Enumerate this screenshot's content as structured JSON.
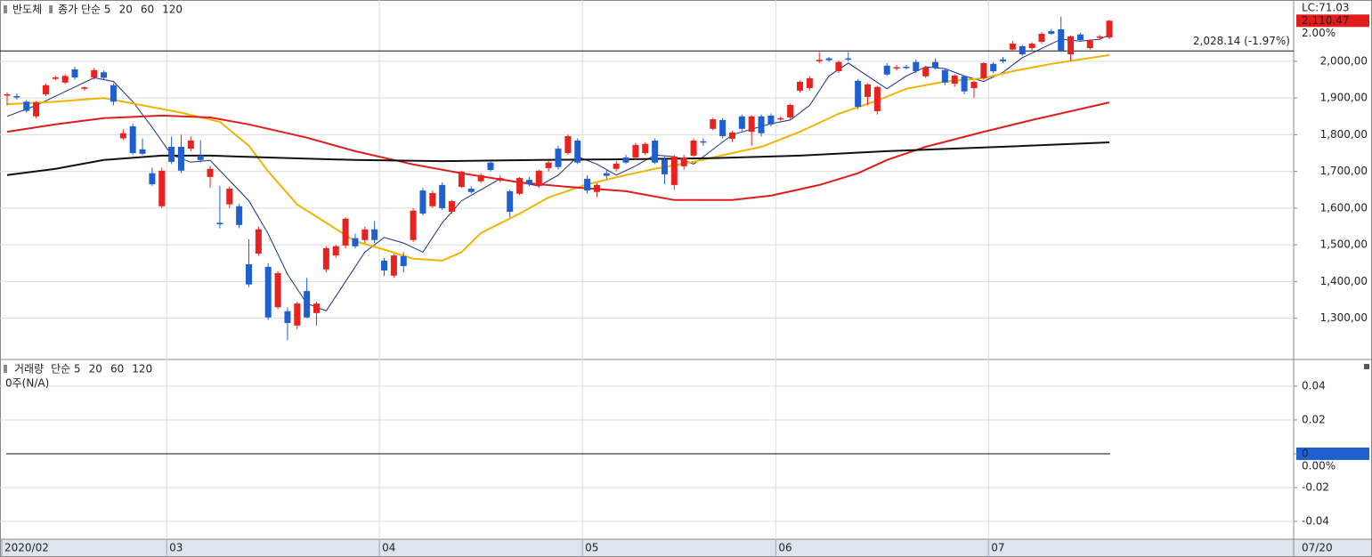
{
  "chart_data": [
    {
      "type": "candlestick",
      "title": "반도체",
      "categories": [
        "2020/02",
        null,
        null,
        null,
        null,
        null,
        null,
        null,
        null,
        null,
        null,
        null,
        null,
        null,
        null,
        null,
        null,
        "03",
        null,
        null,
        null,
        null,
        null,
        null,
        null,
        null,
        null,
        null,
        null,
        null,
        null,
        null,
        null,
        null,
        null,
        null,
        null,
        null,
        null,
        "04",
        null,
        null,
        null,
        null,
        null,
        null,
        null,
        null,
        null,
        null,
        null,
        null,
        null,
        null,
        null,
        null,
        null,
        null,
        null,
        null,
        "05",
        null,
        null,
        null,
        null,
        null,
        null,
        null,
        null,
        null,
        null,
        null,
        null,
        null,
        null,
        null,
        null,
        null,
        null,
        null,
        "06",
        null,
        null,
        null,
        null,
        null,
        null,
        null,
        null,
        null,
        null,
        null,
        null,
        null,
        null,
        null,
        null,
        null,
        null,
        null,
        null,
        null,
        "07",
        null,
        null,
        null,
        null,
        null,
        null,
        null,
        null,
        null,
        null,
        null,
        null
      ],
      "ohlc": [
        [
          1908,
          1915,
          1880,
          1910
        ],
        [
          1905,
          1912,
          1895,
          1903
        ],
        [
          1890,
          1895,
          1860,
          1865
        ],
        [
          1850,
          1892,
          1845,
          1888
        ],
        [
          1910,
          1940,
          1905,
          1935
        ],
        [
          1952,
          1960,
          1948,
          1956
        ],
        [
          1942,
          1965,
          1938,
          1960
        ],
        [
          1978,
          1985,
          1950,
          1956
        ],
        [
          1925,
          1932,
          1920,
          1929
        ],
        [
          1956,
          1982,
          1950,
          1976
        ],
        [
          1970,
          1975,
          1950,
          1955
        ],
        [
          1935,
          1940,
          1880,
          1890
        ],
        [
          1790,
          1815,
          1785,
          1804
        ],
        [
          1823,
          1830,
          1745,
          1750
        ],
        [
          1760,
          1790,
          1745,
          1748
        ],
        [
          1695,
          1710,
          1660,
          1665
        ],
        [
          1605,
          1710,
          1600,
          1702
        ],
        [
          1767,
          1795,
          1720,
          1726
        ],
        [
          1767,
          1800,
          1695,
          1702
        ],
        [
          1762,
          1795,
          1755,
          1784
        ],
        [
          1743,
          1785,
          1725,
          1731
        ],
        [
          1685,
          1715,
          1655,
          1707
        ],
        [
          1560,
          1660,
          1545,
          1556
        ],
        [
          1610,
          1660,
          1600,
          1653
        ],
        [
          1605,
          1612,
          1545,
          1554
        ],
        [
          1447,
          1515,
          1385,
          1392
        ],
        [
          1476,
          1550,
          1470,
          1542
        ],
        [
          1440,
          1450,
          1295,
          1302
        ],
        [
          1330,
          1428,
          1325,
          1423
        ],
        [
          1319,
          1330,
          1240,
          1287
        ],
        [
          1280,
          1345,
          1270,
          1340
        ],
        [
          1374,
          1410,
          1300,
          1302
        ],
        [
          1314,
          1345,
          1280,
          1340
        ],
        [
          1433,
          1495,
          1425,
          1491
        ],
        [
          1471,
          1500,
          1465,
          1496
        ],
        [
          1498,
          1575,
          1490,
          1571
        ],
        [
          1518,
          1530,
          1490,
          1496
        ],
        [
          1513,
          1550,
          1505,
          1542
        ],
        [
          1542,
          1565,
          1505,
          1513
        ],
        [
          1457,
          1465,
          1415,
          1430
        ],
        [
          1416,
          1475,
          1410,
          1471
        ],
        [
          1469,
          1480,
          1425,
          1442
        ],
        [
          1513,
          1600,
          1508,
          1593
        ],
        [
          1648,
          1655,
          1580,
          1585
        ],
        [
          1605,
          1648,
          1600,
          1641
        ],
        [
          1663,
          1670,
          1595,
          1600
        ],
        [
          1590,
          1622,
          1585,
          1619
        ],
        [
          1658,
          1702,
          1655,
          1699
        ],
        [
          1653,
          1660,
          1640,
          1644
        ],
        [
          1673,
          1695,
          1668,
          1690
        ],
        [
          1724,
          1728,
          1700,
          1704
        ],
        [
          1675,
          1690,
          1670,
          1682
        ],
        [
          1646,
          1650,
          1575,
          1590
        ],
        [
          1639,
          1685,
          1635,
          1682
        ],
        [
          1677,
          1685,
          1660,
          1665
        ],
        [
          1660,
          1705,
          1655,
          1702
        ],
        [
          1709,
          1730,
          1700,
          1724
        ],
        [
          1762,
          1770,
          1705,
          1712
        ],
        [
          1750,
          1800,
          1745,
          1796
        ],
        [
          1784,
          1790,
          1720,
          1724
        ],
        [
          1680,
          1690,
          1640,
          1648
        ],
        [
          1644,
          1668,
          1630,
          1663
        ],
        [
          1695,
          1705,
          1680,
          1688
        ],
        [
          1707,
          1728,
          1700,
          1721
        ],
        [
          1738,
          1745,
          1720,
          1724
        ],
        [
          1738,
          1778,
          1732,
          1772
        ],
        [
          1750,
          1780,
          1745,
          1775
        ],
        [
          1784,
          1790,
          1720,
          1724
        ],
        [
          1733,
          1740,
          1665,
          1692
        ],
        [
          1663,
          1745,
          1650,
          1741
        ],
        [
          1714,
          1745,
          1705,
          1738
        ],
        [
          1743,
          1790,
          1740,
          1784
        ],
        [
          1782,
          1790,
          1770,
          1779
        ],
        [
          1816,
          1846,
          1812,
          1842
        ],
        [
          1840,
          1845,
          1790,
          1796
        ],
        [
          1789,
          1810,
          1780,
          1806
        ],
        [
          1850,
          1855,
          1810,
          1816
        ],
        [
          1808,
          1853,
          1770,
          1850
        ],
        [
          1850,
          1855,
          1795,
          1804
        ],
        [
          1852,
          1858,
          1822,
          1828
        ],
        [
          1842,
          1850,
          1838,
          1845
        ],
        [
          1847,
          1885,
          1840,
          1881
        ],
        [
          1920,
          1948,
          1915,
          1944
        ],
        [
          1927,
          1960,
          1920,
          1954
        ],
        [
          2000,
          2025,
          1995,
          2004
        ],
        [
          2008,
          2012,
          1998,
          2003
        ],
        [
          1973,
          2002,
          1968,
          1998
        ],
        [
          2008,
          2025,
          2000,
          2005
        ],
        [
          1947,
          1952,
          1870,
          1876
        ],
        [
          1903,
          1940,
          1880,
          1937
        ],
        [
          1864,
          1933,
          1855,
          1930
        ],
        [
          1988,
          1995,
          1960,
          1964
        ],
        [
          1980,
          1990,
          1975,
          1984
        ],
        [
          1985,
          1990,
          1978,
          1982
        ],
        [
          1998,
          2005,
          1968,
          1973
        ],
        [
          1959,
          1988,
          1955,
          1983
        ],
        [
          1998,
          2008,
          1978,
          1983
        ],
        [
          1976,
          1980,
          1935,
          1942
        ],
        [
          1939,
          1965,
          1930,
          1961
        ],
        [
          1959,
          1962,
          1910,
          1918
        ],
        [
          1927,
          1948,
          1900,
          1944
        ],
        [
          1954,
          1998,
          1950,
          1995
        ],
        [
          1993,
          1998,
          1968,
          1973
        ],
        [
          2005,
          2012,
          1995,
          2000
        ],
        [
          2032,
          2055,
          2028,
          2048
        ],
        [
          2041,
          2045,
          2015,
          2019
        ],
        [
          2036,
          2052,
          2030,
          2048
        ],
        [
          2053,
          2080,
          2048,
          2075
        ],
        [
          2082,
          2088,
          2072,
          2075
        ],
        [
          2087,
          2122,
          2025,
          2029
        ],
        [
          2019,
          2070,
          2000,
          2068
        ],
        [
          2073,
          2078,
          2055,
          2058
        ],
        [
          2036,
          2060,
          2032,
          2056
        ],
        [
          2064,
          2072,
          2060,
          2068
        ],
        [
          2065,
          2113,
          2060,
          2110.47
        ]
      ],
      "up_color": "#e8231f",
      "down_color": "#1f5fd0",
      "series": [
        {
          "name": "종가 단순 5",
          "color": "#1c2a8c",
          "x": [
            0,
            3,
            7,
            9,
            11,
            13,
            15,
            17,
            19,
            21,
            23,
            25,
            27,
            29,
            31,
            33,
            35,
            37,
            39,
            41,
            43,
            45,
            47,
            49,
            51,
            53,
            55,
            57,
            59,
            61,
            63,
            65,
            67,
            69,
            71,
            73,
            75,
            77,
            79,
            81,
            83,
            85,
            87,
            89,
            91,
            93,
            95,
            97,
            99,
            101,
            103,
            105,
            107,
            109,
            111,
            113,
            114
          ],
          "values": [
            1850,
            1880,
            1930,
            1955,
            1945,
            1890,
            1820,
            1745,
            1725,
            1730,
            1675,
            1620,
            1530,
            1420,
            1340,
            1320,
            1400,
            1480,
            1520,
            1505,
            1480,
            1560,
            1620,
            1650,
            1680,
            1670,
            1660,
            1690,
            1740,
            1720,
            1690,
            1715,
            1745,
            1740,
            1720,
            1760,
            1800,
            1815,
            1830,
            1840,
            1880,
            1960,
            1995,
            1960,
            1925,
            1960,
            1985,
            1980,
            1960,
            1945,
            1970,
            2010,
            2035,
            2060,
            2055,
            2060,
            2072
          ]
        },
        {
          "name": "20",
          "color": "#f0b400",
          "x": [
            0,
            5,
            10,
            13,
            18,
            22,
            25,
            27,
            30,
            33,
            36,
            39,
            42,
            45,
            47,
            49,
            53,
            56,
            60,
            64,
            67,
            71,
            75,
            78,
            82,
            86,
            90,
            93,
            97,
            101,
            104,
            108,
            114
          ],
          "values": [
            1883,
            1890,
            1900,
            1885,
            1860,
            1835,
            1770,
            1700,
            1610,
            1560,
            1510,
            1487,
            1462,
            1457,
            1480,
            1532,
            1585,
            1629,
            1665,
            1690,
            1707,
            1726,
            1750,
            1767,
            1808,
            1857,
            1893,
            1925,
            1945,
            1954,
            1973,
            1993,
            2017
          ]
        },
        {
          "name": "60",
          "color": "#e01c1c",
          "x": [
            0,
            5,
            10,
            16,
            21,
            25,
            31,
            36,
            42,
            47,
            53,
            58,
            64,
            69,
            75,
            79,
            84,
            88,
            91,
            95,
            101,
            106,
            114
          ],
          "values": [
            1808,
            1828,
            1845,
            1852,
            1847,
            1828,
            1792,
            1755,
            1719,
            1695,
            1670,
            1658,
            1646,
            1622,
            1622,
            1634,
            1663,
            1695,
            1731,
            1767,
            1808,
            1840,
            1888
          ]
        },
        {
          "name": "120",
          "color": "#111111",
          "x": [
            0,
            5,
            10,
            16,
            21,
            27,
            36,
            45,
            55,
            64,
            73,
            82,
            91,
            101,
            114
          ],
          "values": [
            1690,
            1707,
            1731,
            1743,
            1743,
            1738,
            1731,
            1728,
            1731,
            1733,
            1736,
            1743,
            1755,
            1765,
            1779
          ]
        }
      ],
      "ylim": [
        1190,
        2167
      ],
      "yticks": [
        {
          "value": 1300,
          "label": "1,300,00"
        },
        {
          "value": 1400,
          "label": "1,400,00"
        },
        {
          "value": 1500,
          "label": "1,500,00"
        },
        {
          "value": 1600,
          "label": "1,600,00"
        },
        {
          "value": 1700,
          "label": "1,700,00"
        },
        {
          "value": 1800,
          "label": "1,800,00"
        },
        {
          "value": 1900,
          "label": "1,900,00"
        },
        {
          "value": 2000,
          "label": "2,000,00"
        }
      ],
      "grid": true,
      "ref_line": {
        "value": 2028.14,
        "label": "2,028.14 (-1.97%)"
      },
      "last_label": "2,110.47",
      "lc_label": "LC:71.03",
      "change_label": "2.00%",
      "end_date": "07/20"
    },
    {
      "type": "volume",
      "title": "거래량",
      "legend": [
        {
          "name": "단순 5",
          "color": "#1c2a8c"
        },
        {
          "name": "20",
          "color": "#e01c1c"
        },
        {
          "name": "60",
          "color": "#1a8a1a"
        },
        {
          "name": "120",
          "color": "#111111"
        }
      ],
      "note": "0주(N/A)",
      "zero_label": "0.00%",
      "ylim": [
        -0.05,
        0.0547
      ],
      "yticks": [
        -0.04,
        -0.02,
        0,
        0.02,
        0.04
      ],
      "grid": true
    }
  ]
}
